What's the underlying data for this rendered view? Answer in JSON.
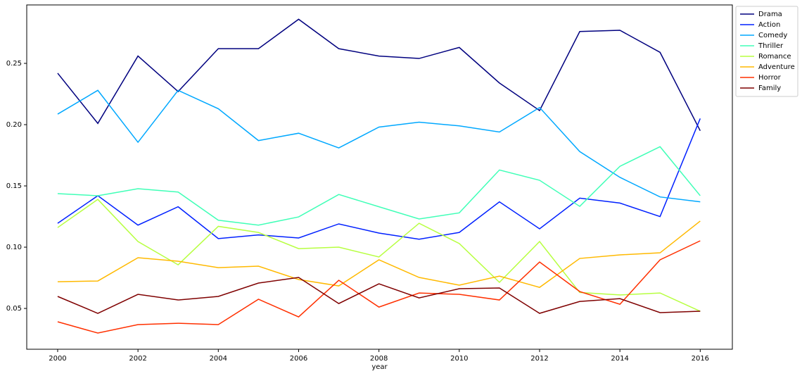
{
  "chart_data": {
    "type": "line",
    "xlabel": "year",
    "x": [
      2000,
      2001,
      2002,
      2003,
      2004,
      2005,
      2006,
      2007,
      2008,
      2009,
      2010,
      2011,
      2012,
      2013,
      2014,
      2015,
      2016
    ],
    "series": [
      {
        "name": "Drama",
        "color": "#00007f",
        "values": [
          0.242,
          0.201,
          0.256,
          0.227,
          0.262,
          0.262,
          0.286,
          0.262,
          0.256,
          0.254,
          0.263,
          0.234,
          0.2115,
          0.276,
          0.277,
          0.259,
          0.195
        ]
      },
      {
        "name": "Action",
        "color": "#0020ff",
        "values": [
          0.1195,
          0.142,
          0.118,
          0.133,
          0.107,
          0.11,
          0.1075,
          0.119,
          0.1115,
          0.1065,
          0.112,
          0.137,
          0.115,
          0.14,
          0.136,
          0.125,
          0.205
        ]
      },
      {
        "name": "Comedy",
        "color": "#00a8ff",
        "values": [
          0.2086,
          0.228,
          0.1856,
          0.228,
          0.213,
          0.187,
          0.193,
          0.181,
          0.198,
          0.202,
          0.199,
          0.194,
          0.214,
          0.178,
          0.157,
          0.141,
          0.137
        ]
      },
      {
        "name": "Thriller",
        "color": "#40ffb7",
        "values": [
          0.1437,
          0.142,
          0.1477,
          0.145,
          0.122,
          0.118,
          0.1247,
          0.143,
          0.133,
          0.123,
          0.128,
          0.163,
          0.1546,
          0.1333,
          0.166,
          0.182,
          0.142
        ]
      },
      {
        "name": "Romance",
        "color": "#b7ff40",
        "values": [
          0.116,
          0.139,
          0.1046,
          0.0856,
          0.117,
          0.112,
          0.0988,
          0.1,
          0.092,
          0.1195,
          0.103,
          0.0713,
          0.1046,
          0.063,
          0.061,
          0.0626,
          0.0477
        ]
      },
      {
        "name": "Adventure",
        "color": "#ffb900",
        "values": [
          0.0718,
          0.0724,
          0.0914,
          0.0885,
          0.0833,
          0.0845,
          0.0736,
          0.0684,
          0.0897,
          0.0753,
          0.069,
          0.0764,
          0.0672,
          0.0908,
          0.0937,
          0.0954,
          0.1213
        ]
      },
      {
        "name": "Horror",
        "color": "#ff3000",
        "values": [
          0.0391,
          0.0299,
          0.0368,
          0.0379,
          0.0368,
          0.0575,
          0.0431,
          0.073,
          0.0511,
          0.0626,
          0.0615,
          0.0569,
          0.0879,
          0.0638,
          0.0534,
          0.0897,
          0.1052
        ]
      },
      {
        "name": "Family",
        "color": "#7f0000",
        "values": [
          0.0598,
          0.046,
          0.0615,
          0.0569,
          0.0598,
          0.0707,
          0.0753,
          0.054,
          0.0701,
          0.0586,
          0.0661,
          0.0667,
          0.046,
          0.0557,
          0.058,
          0.0466,
          0.0477
        ]
      }
    ],
    "xlim": [
      1999.23,
      2016.8
    ],
    "ylim": [
      0.0167,
      0.2977
    ],
    "xticks": [
      2000,
      2002,
      2004,
      2006,
      2008,
      2010,
      2012,
      2014,
      2016
    ],
    "yticks": [
      0.05,
      {
        "value": 0.1,
        "label": "0.10"
      },
      0.15,
      {
        "value": 0.2,
        "label": "0.20"
      },
      0.25
    ],
    "legend": "outside-upper-right",
    "grid": false
  }
}
